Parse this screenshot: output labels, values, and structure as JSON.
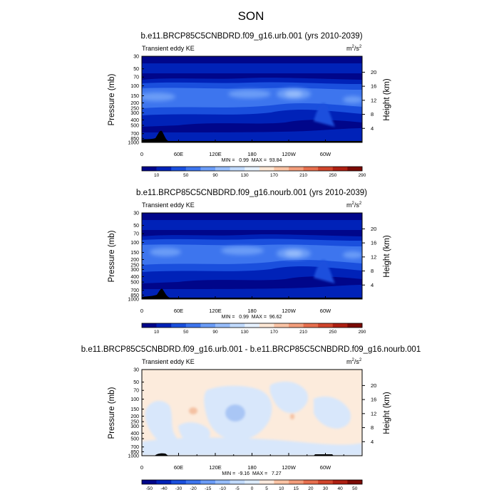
{
  "title": "SON",
  "colors": {
    "ke_scale": [
      "#00068a",
      "#0022b8",
      "#1a4fdd",
      "#3d75ee",
      "#6b9cf7",
      "#97bdfb",
      "#c1dafd",
      "#e6f1ff",
      "#fde7d5",
      "#f9c3a4",
      "#f29d7b",
      "#e66f4e",
      "#d0452c",
      "#ad1f12",
      "#7b0a04"
    ],
    "diff_scale": [
      "#00068a",
      "#0022b8",
      "#1a4fdd",
      "#3d75ee",
      "#6b9cf7",
      "#97bdfb",
      "#c1dafd",
      "#dcebfc",
      "#fdeade",
      "#f9c3a4",
      "#f29d7b",
      "#e66f4e",
      "#d0452c",
      "#ad1f12",
      "#7b0a04"
    ],
    "diff_pos": "#fcebdc",
    "diff_neg": "#d8e7fb"
  },
  "chart_data": [
    {
      "type": "heatmap",
      "title": "b.e11.BRCP85C5CNBDRD.f09_g16.urb.001 (yrs 2010-2039)",
      "left_label": "Transient eddy KE",
      "units_base": "m",
      "units_sup1": "2",
      "units_mid": "/s",
      "units_sup2": "2",
      "ylabel": "Pressure (mb)",
      "ylabel_right": "Height (km)",
      "x_ticks": [
        "0",
        "60E",
        "120E",
        "180",
        "120W",
        "60W"
      ],
      "x_tick_lons": [
        0,
        60,
        120,
        180,
        240,
        300
      ],
      "y_ticks": [
        "30",
        "50",
        "70",
        "100",
        "150",
        "200",
        "250",
        "300",
        "400",
        "500",
        "700",
        "850",
        "1000"
      ],
      "y_tick_values": [
        30,
        50,
        70,
        100,
        150,
        200,
        250,
        300,
        400,
        500,
        700,
        850,
        1000
      ],
      "height_ticks": [
        "4",
        "8",
        "12",
        "16",
        "20"
      ],
      "height_values": [
        4,
        8,
        12,
        16,
        20
      ],
      "stats": "MIN =   0.99  MAX =  93.84",
      "min": 0.99,
      "max": 93.84,
      "colorbar_labels": [
        "10",
        "50",
        "90",
        "130",
        "170",
        "210",
        "250",
        "290"
      ]
    },
    {
      "type": "heatmap",
      "title": "b.e11.BRCP85C5CNBDRD.f09_g16.nourb.001 (yrs 2010-2039)",
      "left_label": "Transient eddy KE",
      "units_base": "m",
      "units_sup1": "2",
      "units_mid": "/s",
      "units_sup2": "2",
      "ylabel": "Pressure (mb)",
      "ylabel_right": "Height (km)",
      "x_ticks": [
        "0",
        "60E",
        "120E",
        "180",
        "120W",
        "60W"
      ],
      "x_tick_lons": [
        0,
        60,
        120,
        180,
        240,
        300
      ],
      "y_ticks": [
        "30",
        "50",
        "70",
        "100",
        "150",
        "200",
        "250",
        "300",
        "400",
        "500",
        "700",
        "850",
        "1000"
      ],
      "y_tick_values": [
        30,
        50,
        70,
        100,
        150,
        200,
        250,
        300,
        400,
        500,
        700,
        850,
        1000
      ],
      "height_ticks": [
        "4",
        "8",
        "12",
        "16",
        "20"
      ],
      "height_values": [
        4,
        8,
        12,
        16,
        20
      ],
      "stats": "MIN =   0.99  MAX =  96.62",
      "min": 0.99,
      "max": 96.62,
      "colorbar_labels": [
        "10",
        "50",
        "90",
        "130",
        "170",
        "210",
        "250",
        "290"
      ]
    },
    {
      "type": "heatmap",
      "title": "b.e11.BRCP85C5CNBDRD.f09_g16.urb.001 - b.e11.BRCP85C5CNBDRD.f09_g16.nourb.001",
      "left_label": "Transient eddy KE",
      "units_base": "m",
      "units_sup1": "2",
      "units_mid": "/s",
      "units_sup2": "2",
      "ylabel": "Pressure (mb)",
      "ylabel_right": "Height (km)",
      "x_ticks": [
        "0",
        "60E",
        "120E",
        "180",
        "120W",
        "60W"
      ],
      "x_tick_lons": [
        0,
        60,
        120,
        180,
        240,
        300
      ],
      "y_ticks": [
        "30",
        "50",
        "70",
        "100",
        "150",
        "200",
        "250",
        "300",
        "400",
        "500",
        "700",
        "850",
        "1000"
      ],
      "y_tick_values": [
        30,
        50,
        70,
        100,
        150,
        200,
        250,
        300,
        400,
        500,
        700,
        850,
        1000
      ],
      "height_ticks": [
        "4",
        "8",
        "12",
        "16",
        "20"
      ],
      "height_values": [
        4,
        8,
        12,
        16,
        20
      ],
      "stats": "MIN =  -9.16  MAX =   7.27",
      "min": -9.16,
      "max": 7.27,
      "colorbar_labels": [
        "-50",
        "-40",
        "-30",
        "-20",
        "-15",
        "-10",
        "-5",
        "0",
        "5",
        "10",
        "15",
        "20",
        "30",
        "40",
        "50"
      ]
    }
  ]
}
